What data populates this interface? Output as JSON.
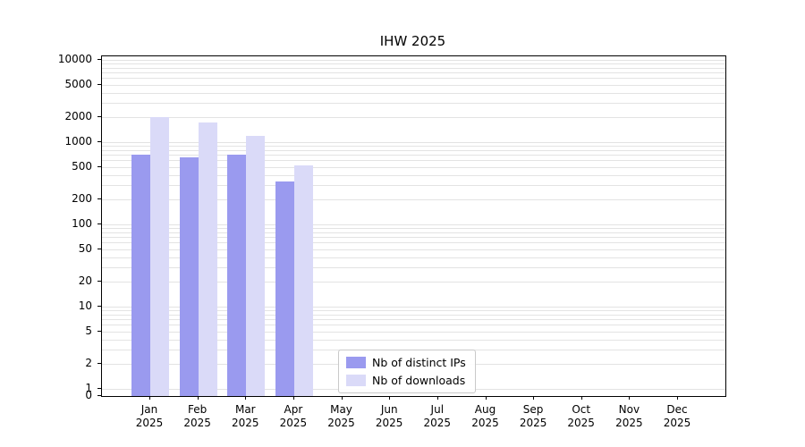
{
  "chart_data": {
    "type": "bar",
    "title": "IHW 2025",
    "categories": [
      "Jan",
      "Feb",
      "Mar",
      "Apr",
      "May",
      "Jun",
      "Jul",
      "Aug",
      "Sep",
      "Oct",
      "Nov",
      "Dec"
    ],
    "category_sublabel": "2025",
    "series": [
      {
        "name": "Nb of distinct IPs",
        "color": "#9a9aef",
        "values": [
          700,
          650,
          700,
          330,
          null,
          null,
          null,
          null,
          null,
          null,
          null,
          null
        ]
      },
      {
        "name": "Nb of downloads",
        "color": "#dadaf8",
        "values": [
          2000,
          1750,
          1200,
          520,
          null,
          null,
          null,
          null,
          null,
          null,
          null,
          null
        ]
      }
    ],
    "yscale": "symlog",
    "yticks": [
      0,
      1,
      2,
      5,
      10,
      20,
      50,
      100,
      200,
      500,
      1000,
      2000,
      5000,
      10000
    ],
    "ylim": [
      0,
      13000
    ],
    "xlabel": "",
    "ylabel": "",
    "grid": true,
    "legend_position": "lower center"
  }
}
